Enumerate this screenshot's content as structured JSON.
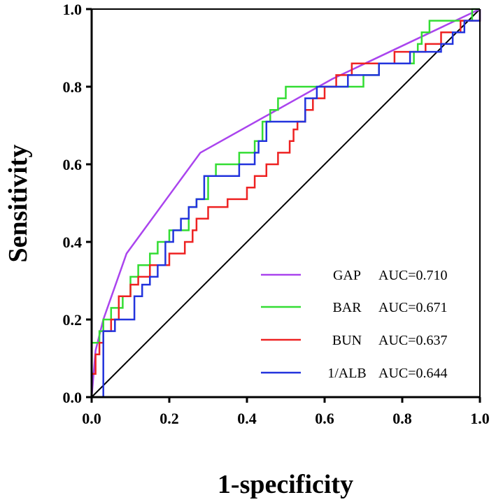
{
  "chart_data": {
    "type": "line",
    "title": "",
    "xlabel": "1-specificity",
    "ylabel": "Sensitivity",
    "xlim": [
      0,
      1
    ],
    "ylim": [
      0,
      1
    ],
    "xticks": [
      "0.0",
      "0.2",
      "0.4",
      "0.6",
      "0.8",
      "1.0"
    ],
    "yticks": [
      "0.0",
      "0.2",
      "0.4",
      "0.6",
      "0.8",
      "1.0"
    ],
    "tick_values": [
      0,
      0.2,
      0.4,
      0.6,
      0.8,
      1.0
    ],
    "grid": false,
    "legend_position": "bottom-right",
    "series": [
      {
        "name": "GAP",
        "auc_label": "AUC=0.710",
        "color": "#aa44ee",
        "step": false,
        "x": [
          0,
          0.01,
          0.03,
          0.09,
          0.28,
          0.62,
          1.0
        ],
        "y": [
          0,
          0.12,
          0.2,
          0.37,
          0.63,
          0.82,
          1.0
        ]
      },
      {
        "name": "BAR",
        "auc_label": "AUC=0.671",
        "color": "#33dd33",
        "step": true,
        "x": [
          0,
          0.01,
          0.02,
          0.03,
          0.05,
          0.08,
          0.1,
          0.12,
          0.15,
          0.17,
          0.2,
          0.22,
          0.25,
          0.27,
          0.3,
          0.32,
          0.35,
          0.38,
          0.42,
          0.44,
          0.46,
          0.48,
          0.5,
          0.52,
          0.55,
          0.58,
          0.62,
          0.66,
          0.7,
          0.74,
          0.8,
          0.83,
          0.84,
          0.85,
          0.87,
          0.9,
          0.94,
          0.98,
          1.0
        ],
        "y": [
          0.14,
          0.14,
          0.17,
          0.2,
          0.23,
          0.26,
          0.31,
          0.34,
          0.37,
          0.4,
          0.43,
          0.43,
          0.49,
          0.51,
          0.57,
          0.6,
          0.6,
          0.63,
          0.66,
          0.71,
          0.74,
          0.77,
          0.8,
          0.8,
          0.8,
          0.8,
          0.8,
          0.8,
          0.83,
          0.86,
          0.86,
          0.89,
          0.91,
          0.94,
          0.97,
          0.97,
          0.97,
          1.0,
          1.0
        ]
      },
      {
        "name": "BUN",
        "auc_label": "AUC=0.637",
        "color": "#ee2222",
        "step": true,
        "x": [
          0,
          0.01,
          0.02,
          0.03,
          0.05,
          0.07,
          0.1,
          0.12,
          0.15,
          0.18,
          0.2,
          0.22,
          0.24,
          0.26,
          0.27,
          0.28,
          0.3,
          0.32,
          0.35,
          0.38,
          0.4,
          0.42,
          0.43,
          0.45,
          0.48,
          0.5,
          0.51,
          0.52,
          0.53,
          0.55,
          0.57,
          0.6,
          0.63,
          0.67,
          0.72,
          0.78,
          0.82,
          0.86,
          0.9,
          0.95,
          0.98,
          1.0
        ],
        "y": [
          0.06,
          0.11,
          0.14,
          0.17,
          0.2,
          0.26,
          0.29,
          0.31,
          0.34,
          0.34,
          0.37,
          0.37,
          0.4,
          0.43,
          0.46,
          0.46,
          0.49,
          0.49,
          0.51,
          0.51,
          0.54,
          0.57,
          0.57,
          0.6,
          0.63,
          0.63,
          0.66,
          0.69,
          0.71,
          0.74,
          0.77,
          0.8,
          0.83,
          0.86,
          0.86,
          0.89,
          0.89,
          0.91,
          0.94,
          0.97,
          0.97,
          1.0
        ]
      },
      {
        "name": "1/ALB",
        "auc_label": "AUC=0.644",
        "color": "#2233dd",
        "step": true,
        "x": [
          0,
          0.02,
          0.03,
          0.06,
          0.08,
          0.11,
          0.13,
          0.15,
          0.17,
          0.19,
          0.21,
          0.23,
          0.25,
          0.27,
          0.29,
          0.31,
          0.33,
          0.35,
          0.38,
          0.42,
          0.43,
          0.45,
          0.48,
          0.51,
          0.55,
          0.58,
          0.6,
          0.62,
          0.66,
          0.7,
          0.74,
          0.78,
          0.82,
          0.86,
          0.88,
          0.9,
          0.93,
          0.96,
          1.0
        ],
        "y": [
          0,
          0.0,
          0.17,
          0.2,
          0.2,
          0.26,
          0.29,
          0.31,
          0.34,
          0.4,
          0.43,
          0.46,
          0.49,
          0.51,
          0.57,
          0.57,
          0.57,
          0.57,
          0.6,
          0.63,
          0.66,
          0.71,
          0.71,
          0.71,
          0.77,
          0.8,
          0.8,
          0.8,
          0.83,
          0.83,
          0.86,
          0.86,
          0.89,
          0.89,
          0.89,
          0.91,
          0.94,
          0.97,
          1.0
        ]
      }
    ],
    "reference_line": {
      "x": [
        0,
        1
      ],
      "y": [
        0,
        1
      ],
      "color": "#000000"
    }
  }
}
